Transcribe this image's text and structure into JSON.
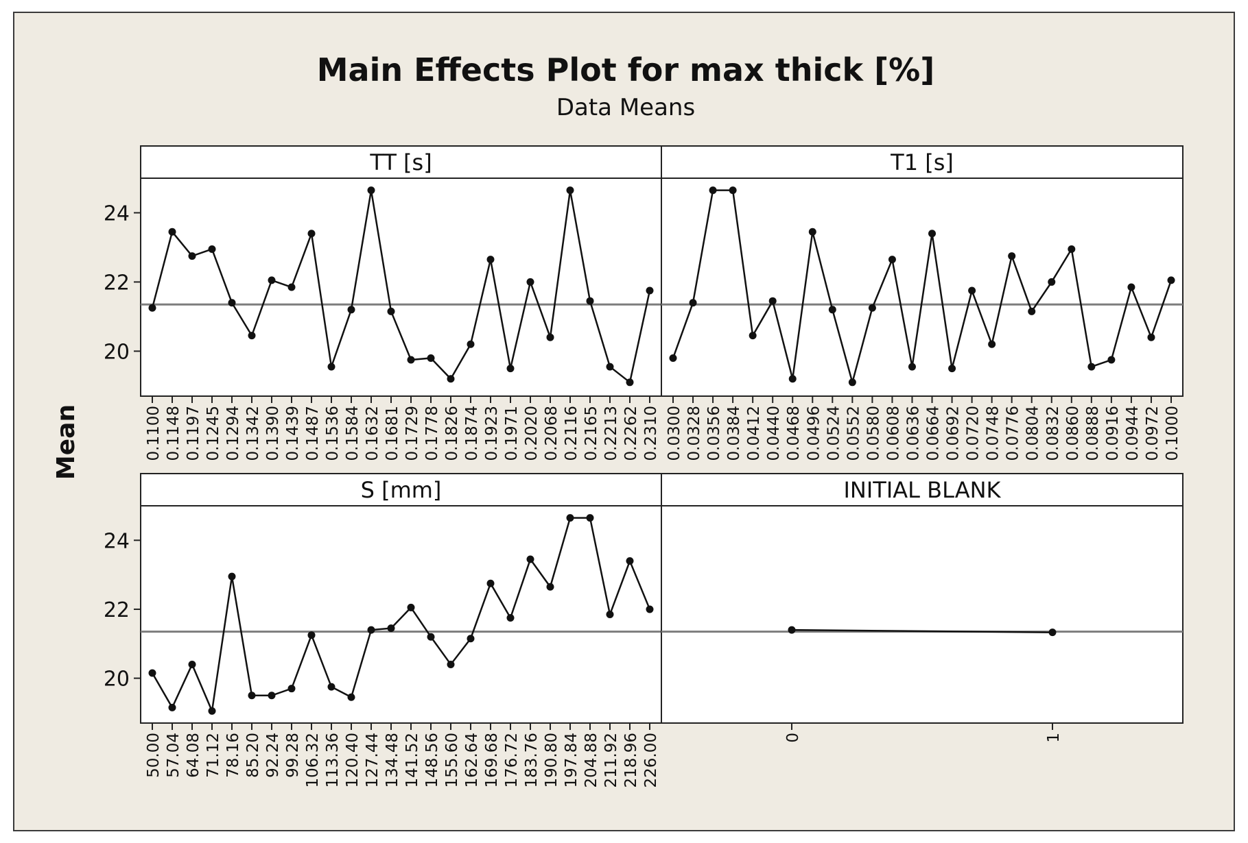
{
  "chart_data": {
    "type": "line",
    "title": "Main Effects Plot for max thick [%]",
    "subtitle": "Data Means",
    "ylabel": "Mean",
    "ylim": [
      18.7,
      25.0
    ],
    "y_ticks": [
      "20",
      "22",
      "24"
    ],
    "overall_mean": 21.35,
    "panels": [
      {
        "name": "TT [s]",
        "categories": [
          "0.1100",
          "0.1148",
          "0.1197",
          "0.1245",
          "0.1294",
          "0.1342",
          "0.1390",
          "0.1439",
          "0.1487",
          "0.1536",
          "0.1584",
          "0.1632",
          "0.1681",
          "0.1729",
          "0.1778",
          "0.1826",
          "0.1874",
          "0.1923",
          "0.1971",
          "0.2020",
          "0.2068",
          "0.2116",
          "0.2165",
          "0.2213",
          "0.2262",
          "0.2310"
        ],
        "values": [
          21.25,
          23.45,
          22.75,
          22.95,
          21.4,
          20.45,
          22.05,
          21.85,
          23.4,
          19.55,
          21.2,
          24.65,
          21.15,
          19.75,
          19.8,
          19.2,
          20.2,
          22.65,
          19.5,
          22.0,
          20.4,
          24.65,
          21.45,
          19.55,
          19.1,
          21.75
        ]
      },
      {
        "name": "T1 [s]",
        "categories": [
          "0.0300",
          "0.0328",
          "0.0356",
          "0.0384",
          "0.0412",
          "0.0440",
          "0.0468",
          "0.0496",
          "0.0524",
          "0.0552",
          "0.0580",
          "0.0608",
          "0.0636",
          "0.0664",
          "0.0692",
          "0.0720",
          "0.0748",
          "0.0776",
          "0.0804",
          "0.0832",
          "0.0860",
          "0.0888",
          "0.0916",
          "0.0944",
          "0.0972",
          "0.1000"
        ],
        "values": [
          19.8,
          21.4,
          24.65,
          24.65,
          20.45,
          21.45,
          19.2,
          23.45,
          21.2,
          19.1,
          21.25,
          22.65,
          19.55,
          23.4,
          19.5,
          21.75,
          20.2,
          22.75,
          21.15,
          22.0,
          22.95,
          19.55,
          19.75,
          21.85,
          20.4,
          22.05
        ]
      },
      {
        "name": "S [mm]",
        "categories": [
          "50.00",
          "57.04",
          "64.08",
          "71.12",
          "78.16",
          "85.20",
          "92.24",
          "99.28",
          "106.32",
          "113.36",
          "120.40",
          "127.44",
          "134.48",
          "141.52",
          "148.56",
          "155.60",
          "162.64",
          "169.68",
          "176.72",
          "183.76",
          "190.80",
          "197.84",
          "204.88",
          "211.92",
          "218.96",
          "226.00"
        ],
        "values": [
          20.15,
          19.15,
          20.4,
          19.05,
          22.95,
          19.5,
          19.5,
          19.7,
          21.25,
          19.75,
          19.45,
          21.4,
          21.45,
          22.05,
          21.2,
          20.4,
          21.15,
          22.75,
          21.75,
          23.45,
          22.65,
          24.65,
          24.65,
          21.85,
          23.4,
          22.0
        ]
      },
      {
        "name": "INITIAL BLANK",
        "categories": [
          "0",
          "1"
        ],
        "values": [
          21.4,
          21.33
        ]
      }
    ]
  }
}
